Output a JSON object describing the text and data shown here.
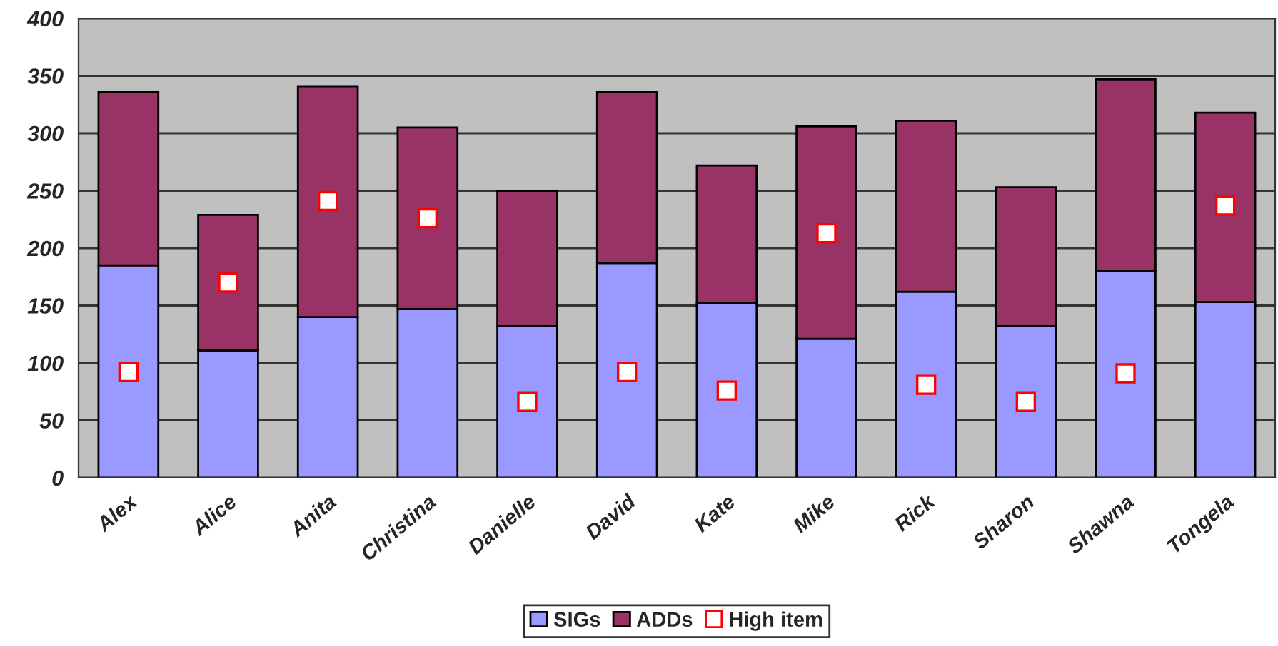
{
  "chart_data": {
    "type": "bar",
    "stacked": true,
    "categories": [
      "Alex",
      "Alice",
      "Anita",
      "Christina",
      "Danielle",
      "David",
      "Kate",
      "Mike",
      "Rick",
      "Sharon",
      "Shawna",
      "Tongela"
    ],
    "series": [
      {
        "name": "SIGs",
        "color": "#9999ff",
        "values": [
          185,
          111,
          140,
          147,
          132,
          187,
          152,
          121,
          162,
          132,
          180,
          153
        ]
      },
      {
        "name": "ADDs",
        "color": "#993366",
        "values": [
          151,
          118,
          201,
          158,
          118,
          149,
          120,
          185,
          149,
          121,
          167,
          165
        ]
      },
      {
        "name": "High item",
        "type": "scatter",
        "marker": "square",
        "color": "#ff0000",
        "x": [
          "Alex",
          "Alice",
          "Anita",
          "Christina",
          "Danielle",
          "David",
          "Kate",
          "Mike",
          "Rick",
          "Sharon",
          "Shawna",
          "Tongela"
        ],
        "values": [
          92,
          170,
          241,
          226,
          66,
          92,
          76,
          213,
          81,
          66,
          91,
          237
        ]
      }
    ],
    "ylim": [
      0,
      400
    ],
    "yticks": [
      0,
      50,
      100,
      150,
      200,
      250,
      300,
      350,
      400
    ],
    "grid": "y",
    "legend": "bottom"
  }
}
